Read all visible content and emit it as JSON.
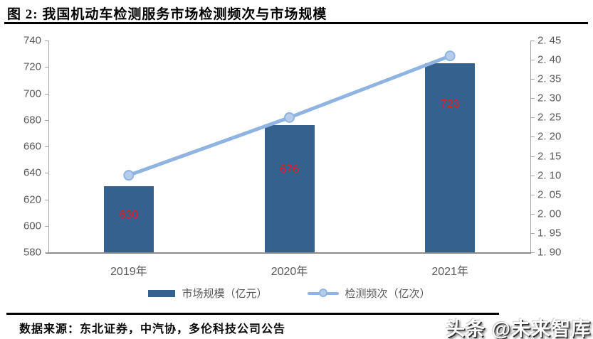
{
  "title": "图 2: 我国机动车检测服务市场检测频次与市场规模",
  "source_note": "数据来源：东北证券，中汽协，多伦科技公司公告",
  "watermark": "头条 @未来智库",
  "colors": {
    "bar": "#35618f",
    "line": "#8fb4e2",
    "marker_fill": "#b5cdea",
    "data_label": "#e31c1c",
    "axis_side": "#a6a6a6",
    "axis_bottom": "#8c8c8c",
    "tick_text": "#595959"
  },
  "chart_data": {
    "type": "bar",
    "combo": "bar+line",
    "title": "我国机动车检测服务市场检测频次与市场规模",
    "categories": [
      "2019年",
      "2020年",
      "2021年"
    ],
    "series": [
      {
        "name": "市场规模（亿元）",
        "type": "bar",
        "axis": "left",
        "values": [
          630,
          676,
          723
        ],
        "data_labels": [
          "630",
          "676",
          "723"
        ]
      },
      {
        "name": "检测频次（亿次）",
        "type": "line",
        "axis": "right",
        "values": [
          2.1,
          2.25,
          2.41
        ]
      }
    ],
    "left_axis": {
      "min": 580,
      "max": 740,
      "step": 20,
      "tick_labels": [
        "740",
        "720",
        "700",
        "680",
        "660",
        "640",
        "620",
        "600",
        "580"
      ]
    },
    "right_axis": {
      "min": 1.9,
      "max": 2.45,
      "step": 0.05,
      "tick_labels": [
        "2. 45",
        "2. 40",
        "2. 35",
        "2. 30",
        "2. 25",
        "2. 20",
        "2. 15",
        "2. 10",
        "2. 05",
        "2. 00",
        "1. 95",
        "1. 90"
      ]
    },
    "grid": false,
    "legend_position": "bottom"
  }
}
